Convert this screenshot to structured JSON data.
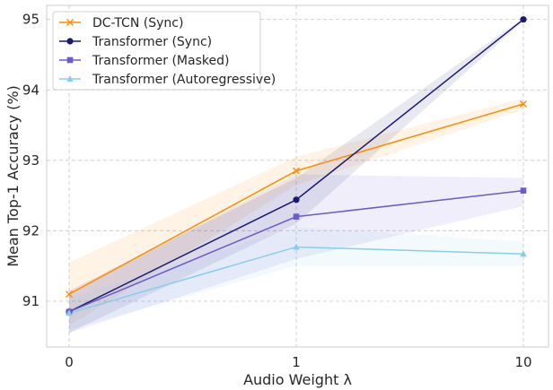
{
  "chart_data": {
    "type": "line",
    "xlabel": "Audio Weight λ",
    "ylabel": "Mean Top-1 Accuracy (%)",
    "categories": [
      "0",
      "1",
      "10"
    ],
    "ylim": [
      90.35,
      95.2
    ],
    "yticks": [
      91,
      92,
      93,
      94,
      95
    ],
    "grid": true,
    "legend_position": "top-left",
    "series": [
      {
        "name": "DC-TCN (Sync)",
        "color": "#ff8c00",
        "marker": "x",
        "values": [
          91.1,
          92.85,
          93.8
        ],
        "band_lower": [
          90.65,
          92.65,
          93.72
        ],
        "band_upper": [
          91.55,
          93.05,
          93.88
        ]
      },
      {
        "name": "Transformer (Sync)",
        "color": "#191970",
        "marker": "circle",
        "values": [
          90.85,
          92.44,
          95.0
        ],
        "band_lower": [
          90.55,
          92.1,
          94.98
        ],
        "band_upper": [
          91.15,
          92.75,
          95.02
        ]
      },
      {
        "name": "Transformer (Masked)",
        "color": "#6a5acd",
        "marker": "square",
        "values": [
          90.85,
          92.2,
          92.57
        ],
        "band_lower": [
          90.55,
          91.6,
          92.35
        ],
        "band_upper": [
          91.1,
          92.8,
          92.75
        ]
      },
      {
        "name": "Transformer (Autoregressive)",
        "color": "#87ceeb",
        "marker": "triangle",
        "values": [
          90.83,
          91.77,
          91.67
        ],
        "band_lower": [
          90.6,
          91.5,
          91.5
        ],
        "band_upper": [
          91.05,
          92.05,
          91.85
        ]
      }
    ]
  }
}
